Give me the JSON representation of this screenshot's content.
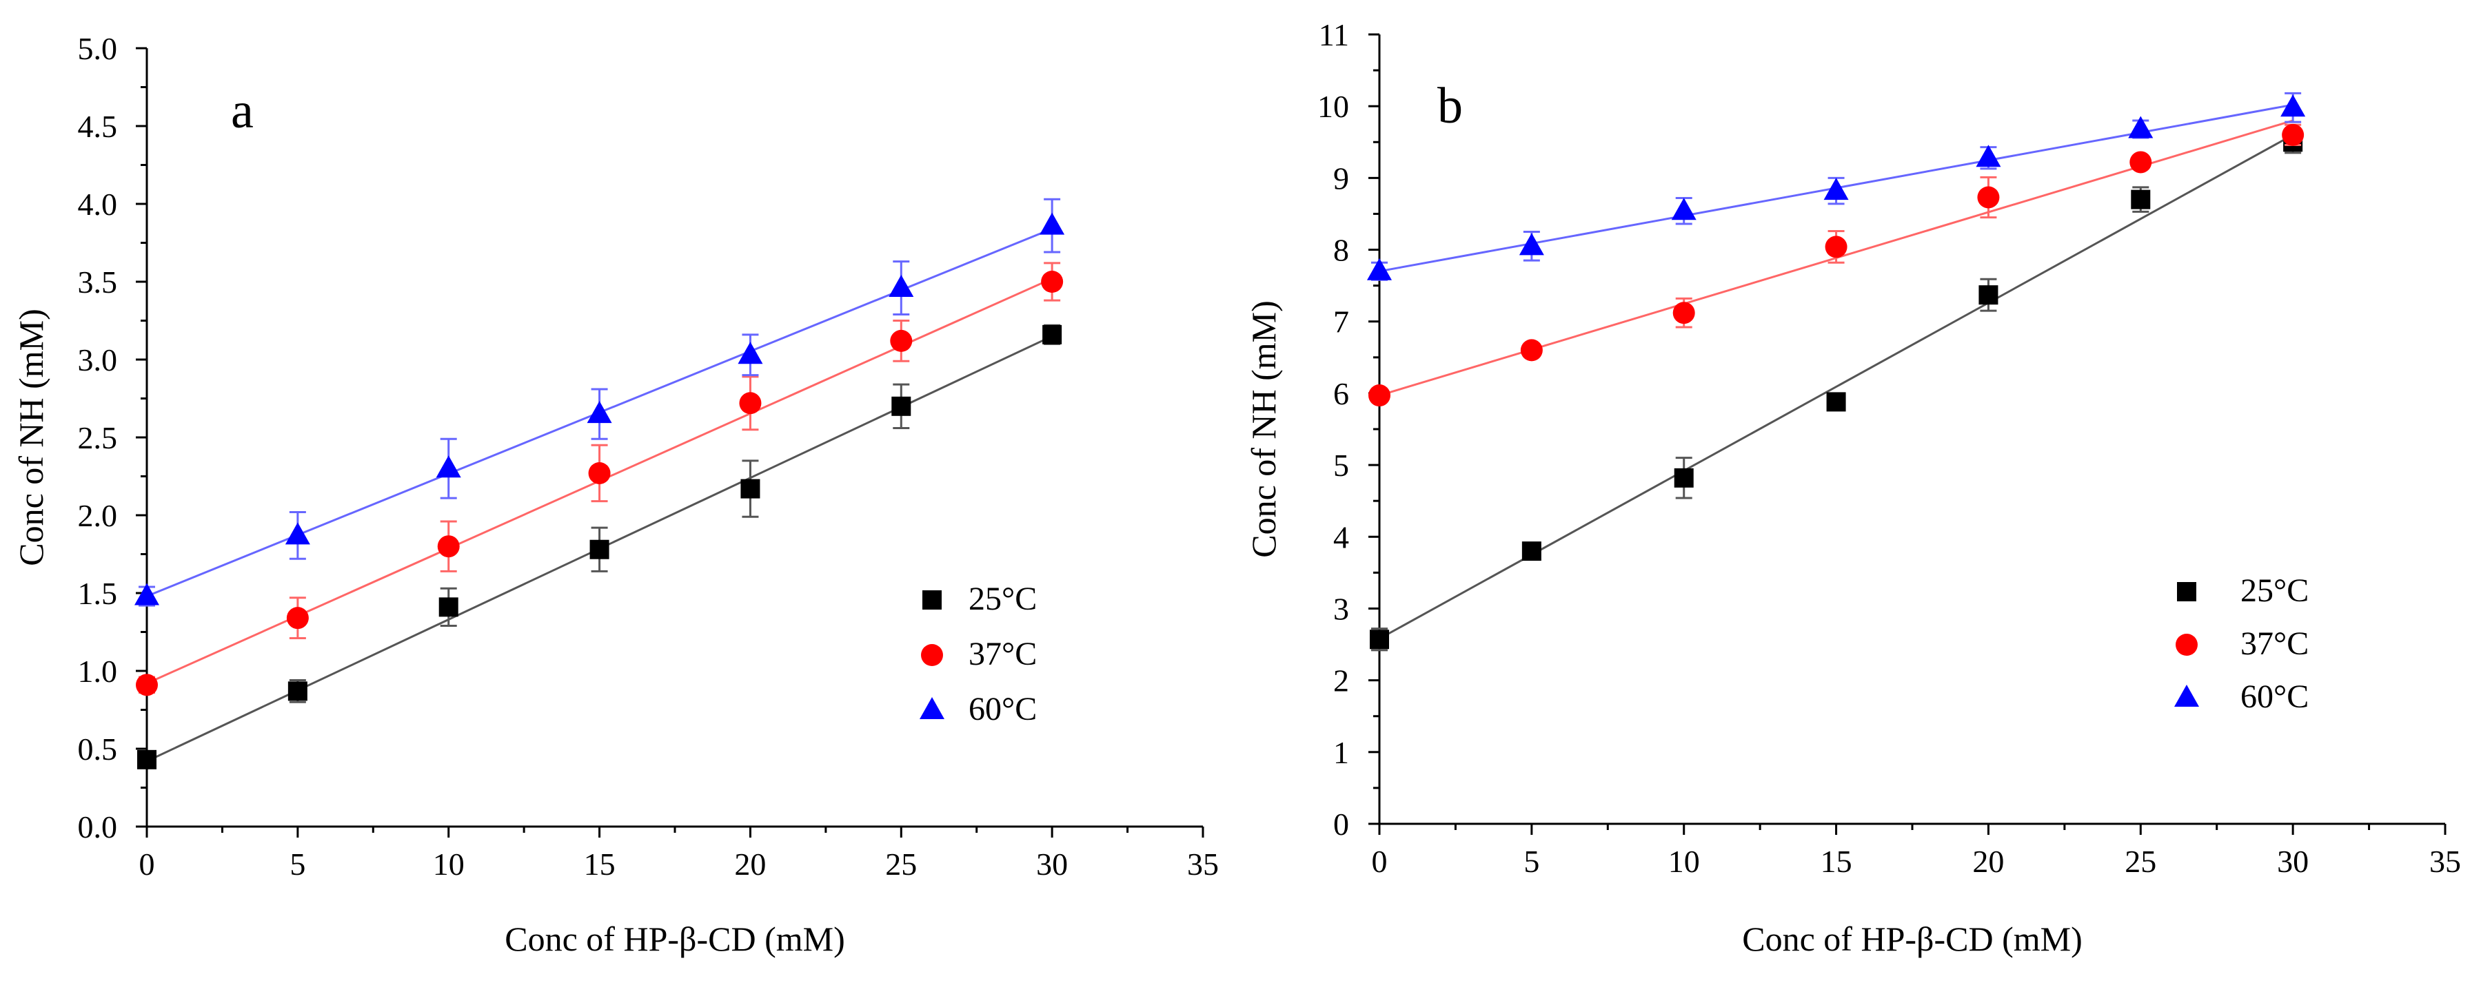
{
  "chart_data": [
    {
      "type": "scatter",
      "panel_label": "a",
      "xlabel": "Conc of HP-β-CD (mM)",
      "ylabel": "Conc of NH (mM)",
      "xlim": [
        0,
        35
      ],
      "ylim": [
        0.0,
        5.0
      ],
      "x_ticks": [
        0,
        5,
        10,
        15,
        20,
        25,
        30,
        35
      ],
      "x_tick_labels": [
        "0",
        "5",
        "10",
        "15",
        "20",
        "25",
        "30",
        "35"
      ],
      "y_ticks": [
        0.0,
        0.5,
        1.0,
        1.5,
        2.0,
        2.5,
        3.0,
        3.5,
        4.0,
        4.5,
        5.0
      ],
      "y_tick_labels": [
        "0.0",
        "0.5",
        "1.0",
        "1.5",
        "2.0",
        "2.5",
        "3.0",
        "3.5",
        "4.0",
        "4.5",
        "5.0"
      ],
      "legend_position": "right",
      "x": [
        0,
        5,
        10,
        15,
        20,
        25,
        30
      ],
      "series": [
        {
          "name": "25°C",
          "marker": "square",
          "color": "#000000",
          "line_color": "#555555",
          "values": [
            0.43,
            0.87,
            1.41,
            1.78,
            2.17,
            2.7,
            3.16
          ],
          "errors": [
            0.05,
            0.07,
            0.12,
            0.14,
            0.18,
            0.14,
            0.06
          ],
          "fit": {
            "start": 0.42,
            "end": 3.15
          }
        },
        {
          "name": "37°C",
          "marker": "circle",
          "color": "#ff0000",
          "line_color": "#ff6666",
          "values": [
            0.91,
            1.34,
            1.8,
            2.27,
            2.72,
            3.12,
            3.5
          ],
          "errors": [
            0.05,
            0.13,
            0.16,
            0.18,
            0.17,
            0.13,
            0.12
          ],
          "fit": {
            "start": 0.92,
            "end": 3.52
          }
        },
        {
          "name": "60°C",
          "marker": "triangle",
          "color": "#0000ff",
          "line_color": "#6666ff",
          "values": [
            1.48,
            1.87,
            2.3,
            2.65,
            3.03,
            3.46,
            3.86
          ],
          "errors": [
            0.06,
            0.15,
            0.19,
            0.16,
            0.13,
            0.17,
            0.17
          ],
          "fit": {
            "start": 1.48,
            "end": 3.84
          }
        }
      ]
    },
    {
      "type": "scatter",
      "panel_label": "b",
      "xlabel": "Conc of HP-β-CD (mM)",
      "ylabel": "Conc of NH (mM)",
      "xlim": [
        0,
        35
      ],
      "ylim": [
        0,
        11
      ],
      "x_ticks": [
        0,
        5,
        10,
        15,
        20,
        25,
        30,
        35
      ],
      "x_tick_labels": [
        "0",
        "5",
        "10",
        "15",
        "20",
        "25",
        "30",
        "35"
      ],
      "y_ticks": [
        0,
        1,
        2,
        3,
        4,
        5,
        6,
        7,
        8,
        9,
        10,
        11
      ],
      "y_tick_labels": [
        "0",
        "1",
        "2",
        "3",
        "4",
        "5",
        "6",
        "7",
        "8",
        "9",
        "10",
        "11"
      ],
      "legend_position": "right",
      "x": [
        0,
        5,
        10,
        15,
        20,
        25,
        30
      ],
      "series": [
        {
          "name": "25°C",
          "marker": "square",
          "color": "#000000",
          "line_color": "#555555",
          "values": [
            2.57,
            3.8,
            4.82,
            5.88,
            7.37,
            8.7,
            9.5
          ],
          "errors": [
            0.15,
            0.06,
            0.28,
            0.08,
            0.22,
            0.17,
            0.15
          ],
          "fit": {
            "start": 2.58,
            "end": 9.6
          }
        },
        {
          "name": "37°C",
          "marker": "circle",
          "color": "#ff0000",
          "line_color": "#ff6666",
          "values": [
            5.97,
            6.6,
            7.12,
            8.04,
            8.73,
            9.22,
            9.6
          ],
          "errors": [
            0.06,
            0.08,
            0.2,
            0.22,
            0.28,
            0.08,
            0.14
          ],
          "fit": {
            "start": 5.97,
            "end": 9.8
          }
        },
        {
          "name": "60°C",
          "marker": "triangle",
          "color": "#0000ff",
          "line_color": "#6666ff",
          "values": [
            7.7,
            8.05,
            8.54,
            8.82,
            9.28,
            9.68,
            9.98
          ],
          "errors": [
            0.12,
            0.2,
            0.18,
            0.18,
            0.15,
            0.12,
            0.2
          ],
          "fit": {
            "start": 7.7,
            "end": 10.02
          }
        }
      ]
    }
  ]
}
